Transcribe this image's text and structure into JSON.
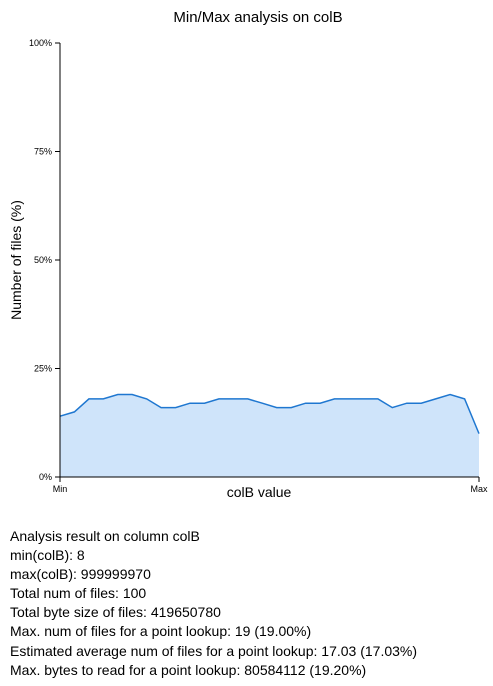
{
  "chart_data": {
    "type": "area",
    "title": "Min/Max analysis on colB",
    "xlabel": "colB value",
    "ylabel": "Number of files (%)",
    "x_tick_labels": [
      "Min",
      "Max"
    ],
    "y_ticks": [
      0,
      25,
      50,
      75,
      100
    ],
    "y_tick_labels": [
      "0%",
      "25%",
      "50%",
      "75%",
      "100%"
    ],
    "ylim": [
      0,
      100
    ],
    "grid": false,
    "colors": {
      "line": "#1f77d0",
      "fill": "#cfe4fa"
    },
    "values": [
      14,
      15,
      18,
      18,
      19,
      19,
      18,
      16,
      16,
      17,
      17,
      18,
      18,
      18,
      17,
      16,
      16,
      17,
      17,
      18,
      18,
      18,
      18,
      16,
      17,
      17,
      18,
      19,
      18,
      10
    ]
  },
  "stats": [
    "Analysis result on column colB",
    "min(colB): 8",
    "max(colB): 999999970",
    "Total num of files: 100",
    "Total byte size of files: 419650780",
    "Max. num of files for a point lookup: 19 (19.00%)",
    "Estimated average num of files for a point lookup: 17.03 (17.03%)",
    "Max. bytes to read for a point lookup: 80584112 (19.20%)"
  ]
}
